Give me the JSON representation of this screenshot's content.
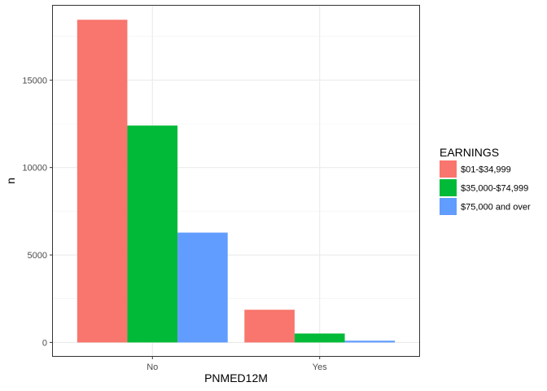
{
  "chart_data": {
    "type": "bar",
    "categories": [
      "No",
      "Yes"
    ],
    "series": [
      {
        "name": "$01-$34,999",
        "values": [
          18450,
          1870
        ],
        "color": "#F8766D"
      },
      {
        "name": "$35,000-$74,999",
        "values": [
          12400,
          510
        ],
        "color": "#00BA38"
      },
      {
        "name": "$75,000 and over",
        "values": [
          6280,
          100
        ],
        "color": "#619CFF"
      }
    ],
    "title": "",
    "xlabel": "PNMED12M",
    "ylabel": "n",
    "ylim": [
      -820,
      19300
    ],
    "yticks": [
      0,
      5000,
      10000,
      15000
    ],
    "ytick_labels": [
      "0",
      "5000",
      "10000",
      "15000"
    ],
    "grid": true,
    "legend": {
      "title": "EARNINGS",
      "position": "right"
    }
  }
}
